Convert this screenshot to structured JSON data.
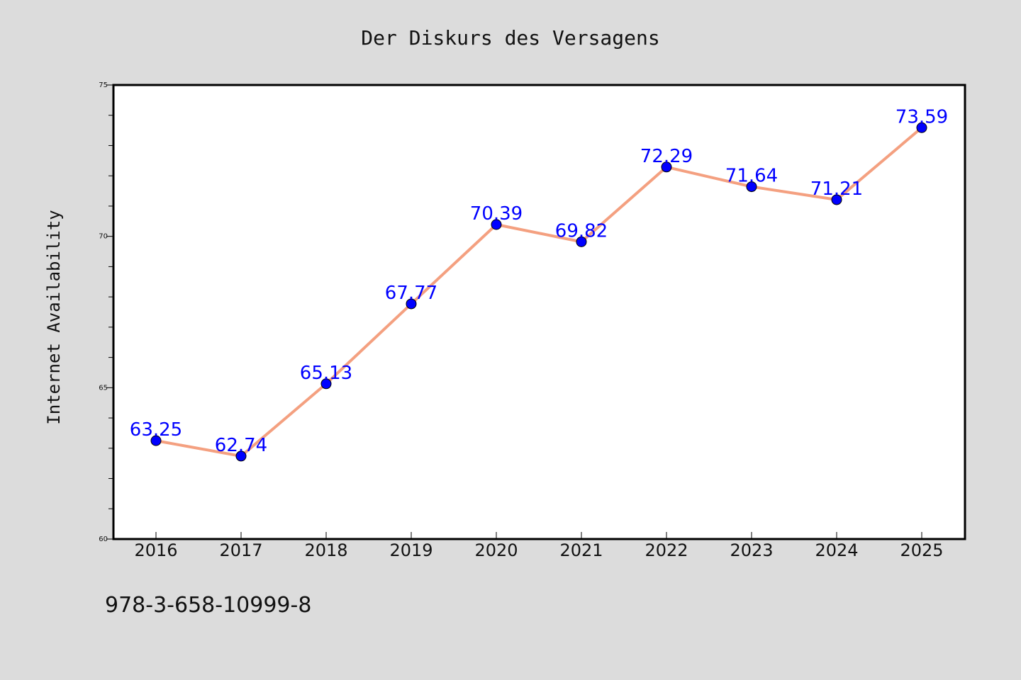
{
  "chart_data": {
    "type": "line",
    "title": "Der Diskurs des Versagens",
    "xlabel": "",
    "ylabel": "Internet Availability",
    "categories": [
      "2016",
      "2017",
      "2018",
      "2019",
      "2020",
      "2021",
      "2022",
      "2023",
      "2024",
      "2025"
    ],
    "series": [
      {
        "values": [
          63.25,
          62.74,
          65.13,
          67.77,
          70.39,
          69.82,
          72.29,
          71.64,
          71.21,
          73.59
        ],
        "line_color": "#f4a080",
        "marker_color": "#0000ff",
        "label_color": "#0000ff"
      }
    ],
    "data_labels": [
      "63.25",
      "62.74",
      "65.13",
      "67.77",
      "70.39",
      "69.82",
      "72.29",
      "71.64",
      "71.21",
      "73.59"
    ],
    "ylim": [
      60,
      75
    ],
    "yticks": [
      "60",
      "65",
      "70",
      "75"
    ],
    "grid": false,
    "legend": "none"
  },
  "footer": {
    "code": "978-3-658-10999-8"
  },
  "colors": {
    "figure_background": "#dcdcdc",
    "plot_background": "#ffffff",
    "axes_frame": "#000000"
  }
}
